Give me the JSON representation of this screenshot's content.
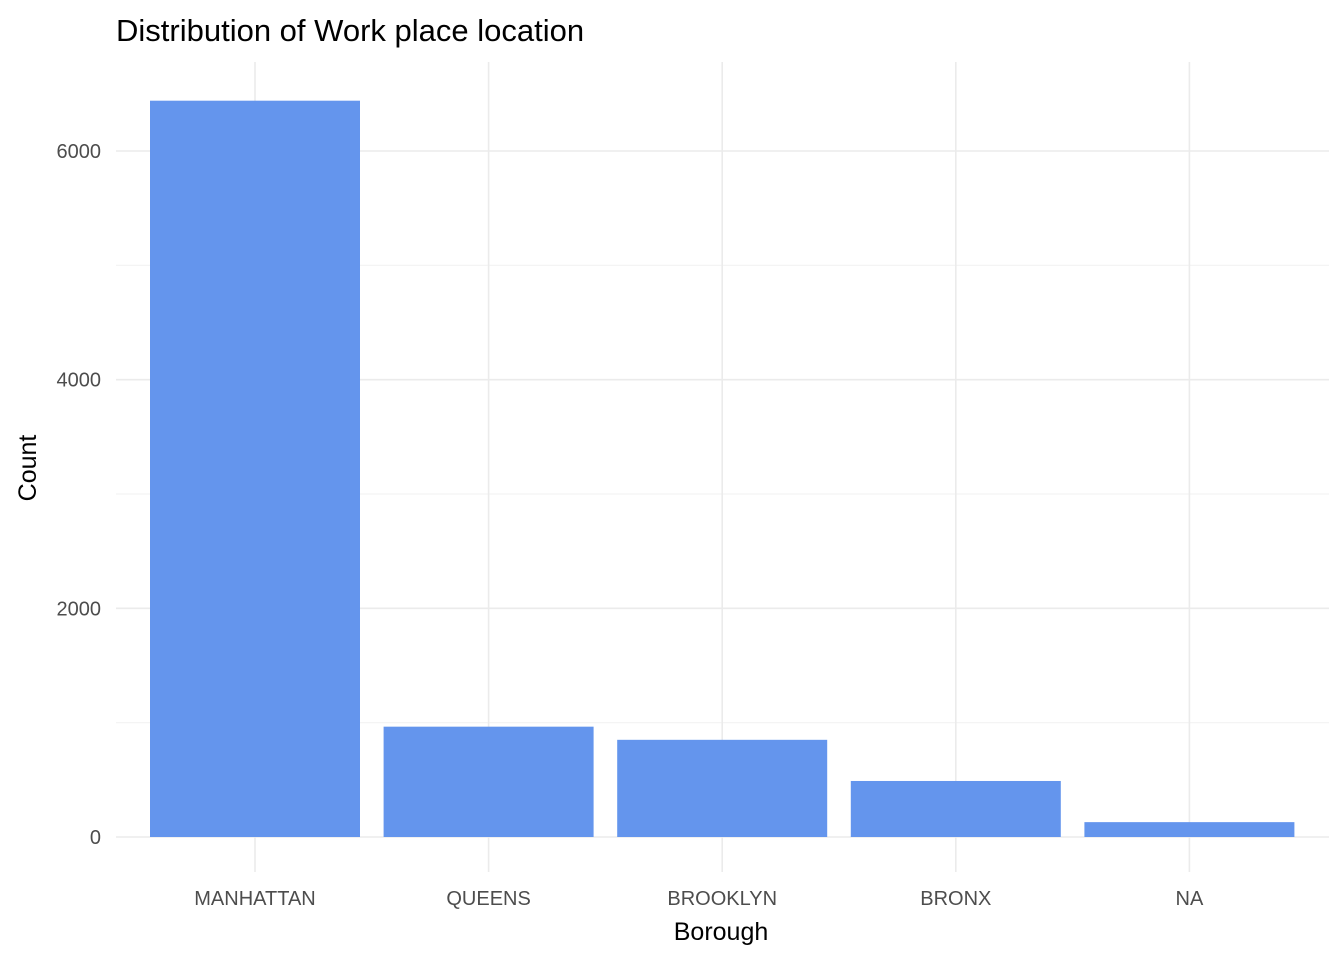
{
  "chart_data": {
    "type": "bar",
    "title": "Distribution of Work place location",
    "xlabel": "Borough",
    "ylabel": "Count",
    "categories": [
      "MANHATTAN",
      "QUEENS",
      "BROOKLYN",
      "BRONX",
      "NA"
    ],
    "values": [
      6440,
      965,
      850,
      490,
      130
    ],
    "ylim": [
      0,
      6750
    ],
    "yticks": [
      0,
      2000,
      4000,
      6000
    ],
    "ytick_labels": [
      "0",
      "2000",
      "4000",
      "6000"
    ],
    "grid": true,
    "legend": "none",
    "bar_color": "#6495ED"
  }
}
